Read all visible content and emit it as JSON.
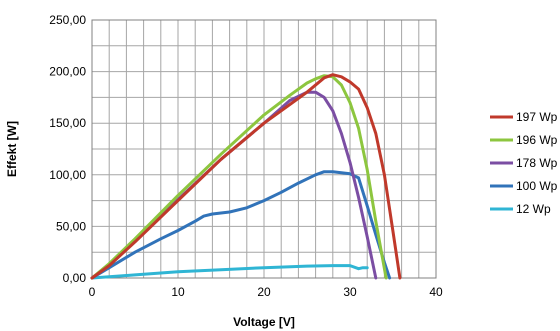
{
  "chart_data": {
    "type": "line",
    "xlabel": "Voltage [V]",
    "ylabel": "Effekt [W]",
    "xlim": [
      0,
      40
    ],
    "ylim": [
      0,
      250
    ],
    "x_ticks": [
      "0",
      "10",
      "20",
      "30",
      "40"
    ],
    "y_ticks": [
      "0,00",
      "50,00",
      "100,00",
      "150,00",
      "200,00",
      "250,00"
    ],
    "grid": true,
    "legend_position": "right",
    "series": [
      {
        "name": "197 Wp",
        "color": "#c0392b",
        "points": [
          [
            0,
            0
          ],
          [
            2,
            12
          ],
          [
            5,
            35
          ],
          [
            10,
            75
          ],
          [
            15,
            115
          ],
          [
            20,
            150
          ],
          [
            25,
            180
          ],
          [
            27,
            194
          ],
          [
            28,
            197
          ],
          [
            29,
            195
          ],
          [
            30,
            190
          ],
          [
            31,
            183
          ],
          [
            32,
            165
          ],
          [
            33,
            140
          ],
          [
            34,
            100
          ],
          [
            35,
            45
          ],
          [
            35.8,
            0
          ]
        ]
      },
      {
        "name": "196 Wp",
        "color": "#8dc63f",
        "points": [
          [
            0,
            0
          ],
          [
            2,
            14
          ],
          [
            5,
            38
          ],
          [
            10,
            80
          ],
          [
            15,
            120
          ],
          [
            20,
            158
          ],
          [
            23,
            177
          ],
          [
            25,
            189
          ],
          [
            26,
            193
          ],
          [
            27,
            196
          ],
          [
            28,
            195
          ],
          [
            29,
            187
          ],
          [
            30,
            170
          ],
          [
            31,
            145
          ],
          [
            32,
            105
          ],
          [
            33,
            55
          ],
          [
            34.2,
            0
          ]
        ]
      },
      {
        "name": "178 Wp",
        "color": "#7b4ea3",
        "points": [
          [
            0,
            0
          ],
          [
            2,
            12
          ],
          [
            5,
            36
          ],
          [
            10,
            76
          ],
          [
            15,
            115
          ],
          [
            20,
            150
          ],
          [
            23,
            172
          ],
          [
            25,
            180
          ],
          [
            26,
            180
          ],
          [
            27,
            175
          ],
          [
            28,
            162
          ],
          [
            29,
            140
          ],
          [
            30,
            112
          ],
          [
            31,
            78
          ],
          [
            32,
            40
          ],
          [
            33,
            0
          ]
        ]
      },
      {
        "name": "100 Wp",
        "color": "#3173b9",
        "points": [
          [
            0,
            0
          ],
          [
            2,
            10
          ],
          [
            5,
            25
          ],
          [
            8,
            38
          ],
          [
            10,
            46
          ],
          [
            12,
            55
          ],
          [
            13,
            60
          ],
          [
            14,
            62
          ],
          [
            16,
            64
          ],
          [
            18,
            68
          ],
          [
            20,
            75
          ],
          [
            22,
            83
          ],
          [
            24,
            92
          ],
          [
            26,
            100
          ],
          [
            27,
            103
          ],
          [
            28,
            103
          ],
          [
            29,
            102
          ],
          [
            30,
            101
          ],
          [
            31,
            97
          ],
          [
            32,
            70
          ],
          [
            33,
            42
          ],
          [
            34,
            15
          ],
          [
            34.6,
            0
          ]
        ]
      },
      {
        "name": "12 Wp",
        "color": "#2fb5d4",
        "points": [
          [
            0,
            0
          ],
          [
            5,
            3
          ],
          [
            10,
            6
          ],
          [
            15,
            8
          ],
          [
            20,
            10
          ],
          [
            25,
            11.5
          ],
          [
            28,
            12
          ],
          [
            30,
            12
          ],
          [
            31,
            9
          ],
          [
            31.5,
            10
          ],
          [
            32,
            10
          ]
        ]
      }
    ]
  }
}
